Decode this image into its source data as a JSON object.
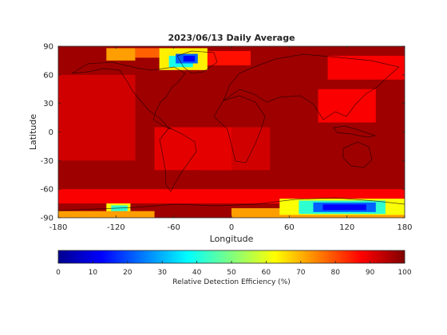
{
  "chart_data": {
    "type": "heatmap",
    "title": "2023/06/13 Daily Average",
    "xlabel": "Longitude",
    "ylabel": "Latitude",
    "xlim": [
      -180,
      180
    ],
    "ylim": [
      -90,
      90
    ],
    "xticks": [
      "-180",
      "-120",
      "-60",
      "0",
      "60",
      "120",
      "180"
    ],
    "xtick_values": [
      -180,
      -120,
      -60,
      0,
      60,
      120,
      180
    ],
    "yticks": [
      "90",
      "60",
      "30",
      "0",
      "-30",
      "-60",
      "-90"
    ],
    "ytick_values": [
      90,
      60,
      30,
      0,
      -30,
      -60,
      -90
    ],
    "colorbar": {
      "label": "Relative Detection Efficiency (%)",
      "range": [
        0,
        100
      ],
      "ticks": [
        "0",
        "10",
        "20",
        "30",
        "40",
        "50",
        "60",
        "70",
        "80",
        "90",
        "100"
      ],
      "tick_values": [
        0,
        10,
        20,
        30,
        40,
        50,
        60,
        70,
        80,
        90,
        100
      ],
      "colormap": "jet"
    },
    "background_value": 97,
    "regions": [
      {
        "lon": [
          -180,
          -100
        ],
        "lat": [
          -30,
          60
        ],
        "value": 92
      },
      {
        "lon": [
          -30,
          40
        ],
        "lat": [
          -40,
          5
        ],
        "value": 92
      },
      {
        "lon": [
          -80,
          0
        ],
        "lat": [
          -40,
          5
        ],
        "value": 90
      },
      {
        "lon": [
          90,
          150
        ],
        "lat": [
          10,
          45
        ],
        "value": 88
      },
      {
        "lon": [
          100,
          180
        ],
        "lat": [
          55,
          80
        ],
        "value": 88
      },
      {
        "lon": [
          -180,
          180
        ],
        "lat": [
          -75,
          -60
        ],
        "value": 88
      },
      {
        "lon": [
          -60,
          20
        ],
        "lat": [
          70,
          85
        ],
        "value": 86
      },
      {
        "lon": [
          -130,
          -100
        ],
        "lat": [
          75,
          88
        ],
        "value": 72
      },
      {
        "lon": [
          -100,
          -75
        ],
        "lat": [
          78,
          88
        ],
        "value": 78
      },
      {
        "lon": [
          -75,
          -25
        ],
        "lat": [
          65,
          88
        ],
        "value": 64
      },
      {
        "lon": [
          -65,
          -40
        ],
        "lat": [
          68,
          80
        ],
        "value": 40
      },
      {
        "lon": [
          -58,
          -35
        ],
        "lat": [
          72,
          82
        ],
        "value": 22
      },
      {
        "lon": [
          -50,
          -38
        ],
        "lat": [
          74,
          80
        ],
        "value": 12
      },
      {
        "lon": [
          -130,
          -105
        ],
        "lat": [
          -85,
          -75
        ],
        "value": 62
      },
      {
        "lon": [
          -125,
          -108
        ],
        "lat": [
          -84,
          -77
        ],
        "value": 42
      },
      {
        "lon": [
          -180,
          -80
        ],
        "lat": [
          -90,
          -83
        ],
        "value": 72
      },
      {
        "lon": [
          0,
          180
        ],
        "lat": [
          -90,
          -80
        ],
        "value": 72
      },
      {
        "lon": [
          50,
          180
        ],
        "lat": [
          -87,
          -70
        ],
        "value": 62
      },
      {
        "lon": [
          70,
          160
        ],
        "lat": [
          -86,
          -72
        ],
        "value": 42
      },
      {
        "lon": [
          85,
          150
        ],
        "lat": [
          -84,
          -74
        ],
        "value": 22
      },
      {
        "lon": [
          95,
          140
        ],
        "lat": [
          -82,
          -76
        ],
        "value": 12
      }
    ]
  }
}
